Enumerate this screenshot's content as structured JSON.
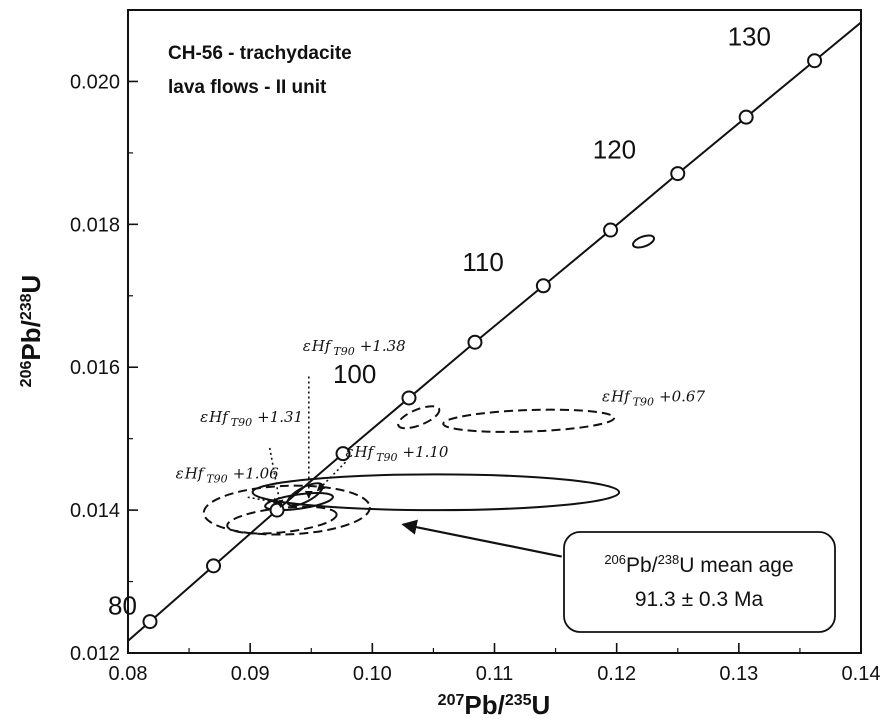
{
  "chart_data": {
    "type": "scatter",
    "title_lines": [
      "CH-56 - trachydacite",
      "lava flows - II unit"
    ],
    "xlabel": {
      "mass": "207",
      "element": "Pb/",
      "mass2": "235",
      "element2": "U"
    },
    "ylabel": {
      "mass": "206",
      "element": "Pb/",
      "mass2": "238",
      "element2": "U"
    },
    "xlim": [
      0.08,
      0.14
    ],
    "ylim": [
      0.012,
      0.021
    ],
    "xticks": [
      0.08,
      0.09,
      0.1,
      0.11,
      0.12,
      0.13,
      0.14
    ],
    "xtick_labels": [
      "0.08",
      "0.09",
      "0.10",
      "0.11",
      "0.12",
      "0.13",
      "0.14"
    ],
    "yticks": [
      0.012,
      0.014,
      0.016,
      0.018,
      0.02
    ],
    "ytick_labels": [
      "0.012",
      "0.014",
      "0.016",
      "0.018",
      "0.020"
    ],
    "concordia_points": [
      {
        "age": 80,
        "x": 0.0818,
        "y": 0.01244
      },
      {
        "age": 85,
        "x": 0.087,
        "y": 0.01322
      },
      {
        "age": 90,
        "x": 0.0922,
        "y": 0.014
      },
      {
        "age": 95,
        "x": 0.0976,
        "y": 0.01479
      },
      {
        "age": 100,
        "x": 0.103,
        "y": 0.01557
      },
      {
        "age": 105,
        "x": 0.1084,
        "y": 0.01635
      },
      {
        "age": 110,
        "x": 0.114,
        "y": 0.01714
      },
      {
        "age": 115,
        "x": 0.1195,
        "y": 0.01792
      },
      {
        "age": 120,
        "x": 0.125,
        "y": 0.01871
      },
      {
        "age": 125,
        "x": 0.1306,
        "y": 0.0195
      },
      {
        "age": 130,
        "x": 0.1362,
        "y": 0.02029
      }
    ],
    "age_labels": [
      {
        "text": "80",
        "age": 80
      },
      {
        "text": "100",
        "age": 100
      },
      {
        "text": "110",
        "age": 110
      },
      {
        "text": "120",
        "age": 120
      },
      {
        "text": "130",
        "age": 130
      }
    ],
    "ellipses": [
      {
        "cx": 0.1052,
        "cy": 0.01425,
        "rx": 0.015,
        "ry": 0.00025,
        "angle": 0,
        "style": "solid"
      },
      {
        "cx": 0.0945,
        "cy": 0.01422,
        "rx": 0.0016,
        "ry": 0.0001,
        "angle": -28,
        "style": "solid"
      },
      {
        "cx": 0.094,
        "cy": 0.01412,
        "rx": 0.0028,
        "ry": 0.0001,
        "angle": -8,
        "style": "solid"
      },
      {
        "cx": 0.1222,
        "cy": 0.01776,
        "rx": 0.0009,
        "ry": 7e-05,
        "angle": -20,
        "style": "solid"
      },
      {
        "cx": 0.1038,
        "cy": 0.0153,
        "rx": 0.0018,
        "ry": 0.00011,
        "angle": -22,
        "style": "dashed"
      },
      {
        "cx": 0.1128,
        "cy": 0.01525,
        "rx": 0.007,
        "ry": 0.00015,
        "angle": -2,
        "style": "dashed"
      },
      {
        "cx": 0.0926,
        "cy": 0.01386,
        "rx": 0.0045,
        "ry": 0.00017,
        "angle": -6,
        "style": "dashed"
      },
      {
        "cx": 0.093,
        "cy": 0.014,
        "rx": 0.0068,
        "ry": 0.00034,
        "angle": -2,
        "style": "dashed"
      }
    ],
    "annotations": [
      {
        "symbol": "ε",
        "base": "Hf",
        "sub": "T90",
        "value": "+1.38",
        "x": 0.0943,
        "y": 0.01623,
        "arrow_from": [
          0.0948,
          0.01587
        ],
        "arrow_to": [
          0.0948,
          0.01417
        ],
        "arrow_style": "dotted"
      },
      {
        "symbol": "ε",
        "base": "Hf",
        "sub": "T90",
        "value": "+1.31",
        "x": 0.0859,
        "y": 0.01523,
        "arrow_from": [
          0.0916,
          0.01487
        ],
        "arrow_to": [
          0.0925,
          0.01404
        ],
        "arrow_style": "dotted"
      },
      {
        "symbol": "ε",
        "base": "Hf",
        "sub": "T90",
        "value": "+1.06",
        "x": 0.0839,
        "y": 0.01444,
        "arrow_from": [
          0.0898,
          0.01418
        ],
        "arrow_to": [
          0.0925,
          0.0141
        ],
        "arrow_style": "dotted"
      },
      {
        "symbol": "ε",
        "base": "Hf",
        "sub": "T90",
        "value": "+1.10",
        "x": 0.0978,
        "y": 0.01474,
        "arrow_from": [
          0.0978,
          0.01467
        ],
        "arrow_to": [
          0.0955,
          0.01427
        ],
        "arrow_style": "dotted"
      },
      {
        "symbol": "ε",
        "base": "Hf",
        "sub": "T90",
        "value": "+0.67",
        "x": 0.1188,
        "y": 0.01552,
        "arrow_from": null,
        "arrow_to": null,
        "arrow_style": "none"
      }
    ],
    "mean_age_box": {
      "line1_pre": "206",
      "line1_mid": "Pb/",
      "line1_sup2": "238",
      "line1_post": "U mean age",
      "line2": "91.3 ± 0.3 Ma",
      "arrow_from": [
        0.1155,
        0.01335
      ],
      "arrow_to": [
        0.1025,
        0.0138
      ]
    },
    "grid": false
  }
}
